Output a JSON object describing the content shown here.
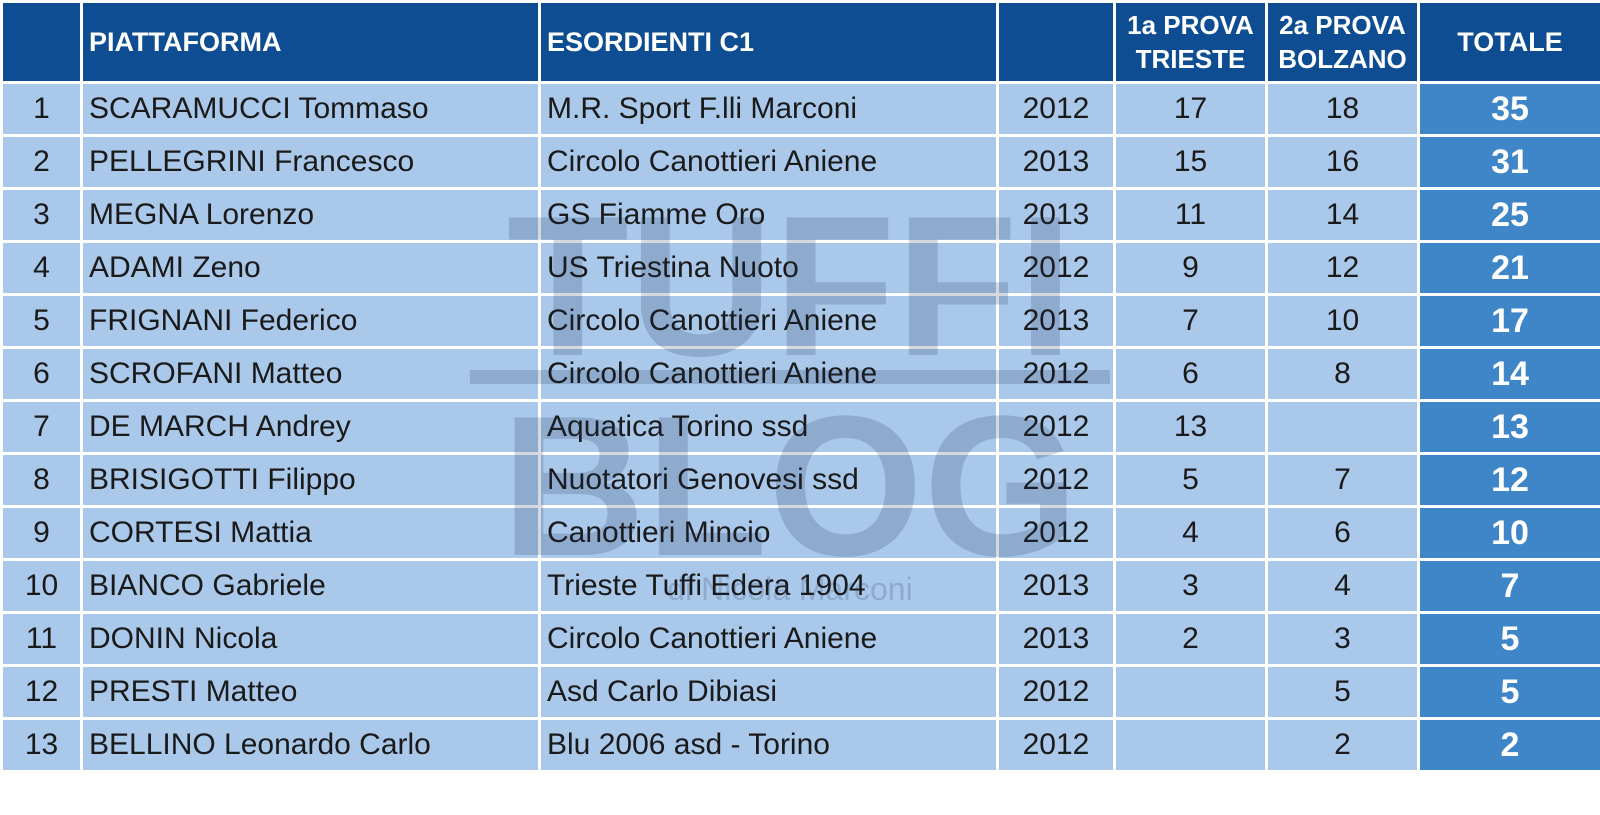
{
  "header": {
    "rank": "",
    "athlete": "PIATTAFORMA",
    "club": "ESORDIENTI C1",
    "year": "",
    "round1_line1": "1a PROVA",
    "round1_line2": "TRIESTE",
    "round2_line1": "2a PROVA",
    "round2_line2": "BOLZANO",
    "total": "TOTALE"
  },
  "rows": [
    {
      "rank": "1",
      "name": "SCARAMUCCI Tommaso",
      "club": "M.R. Sport F.lli Marconi",
      "year": "2012",
      "r1": "17",
      "r2": "18",
      "total": "35"
    },
    {
      "rank": "2",
      "name": "PELLEGRINI Francesco",
      "club": "Circolo Canottieri Aniene",
      "year": "2013",
      "r1": "15",
      "r2": "16",
      "total": "31"
    },
    {
      "rank": "3",
      "name": "MEGNA Lorenzo",
      "club": "GS Fiamme Oro",
      "year": "2013",
      "r1": "11",
      "r2": "14",
      "total": "25"
    },
    {
      "rank": "4",
      "name": "ADAMI Zeno",
      "club": "US Triestina Nuoto",
      "year": "2012",
      "r1": "9",
      "r2": "12",
      "total": "21"
    },
    {
      "rank": "5",
      "name": "FRIGNANI Federico",
      "club": "Circolo Canottieri Aniene",
      "year": "2013",
      "r1": "7",
      "r2": "10",
      "total": "17"
    },
    {
      "rank": "6",
      "name": "SCROFANI Matteo",
      "club": "Circolo Canottieri Aniene",
      "year": "2012",
      "r1": "6",
      "r2": "8",
      "total": "14"
    },
    {
      "rank": "7",
      "name": "DE MARCH Andrey",
      "club": "Aquatica Torino ssd",
      "year": "2012",
      "r1": "13",
      "r2": "",
      "total": "13"
    },
    {
      "rank": "8",
      "name": "BRISIGOTTI Filippo",
      "club": "Nuotatori Genovesi ssd",
      "year": "2012",
      "r1": "5",
      "r2": "7",
      "total": "12"
    },
    {
      "rank": "9",
      "name": "CORTESI Mattia",
      "club": "Canottieri Mincio",
      "year": "2012",
      "r1": "4",
      "r2": "6",
      "total": "10"
    },
    {
      "rank": "10",
      "name": "BIANCO Gabriele",
      "club": "Trieste Tuffi Edera 1904",
      "year": "2013",
      "r1": "3",
      "r2": "4",
      "total": "7"
    },
    {
      "rank": "11",
      "name": "DONIN Nicola",
      "club": "Circolo Canottieri Aniene",
      "year": "2013",
      "r1": "2",
      "r2": "3",
      "total": "5"
    },
    {
      "rank": "12",
      "name": "PRESTI Matteo",
      "club": "Asd Carlo Dibiasi",
      "year": "2012",
      "r1": "",
      "r2": "5",
      "total": "5"
    },
    {
      "rank": "13",
      "name": "BELLINO Leonardo Carlo",
      "club": "Blu 2006 asd - Torino",
      "year": "2012",
      "r1": "",
      "r2": "2",
      "total": "2"
    }
  ],
  "watermark": {
    "line1": "TUFFI",
    "line2": "BLOG",
    "byline": "di Nicola Marconi"
  },
  "colors": {
    "header_bg": "#0e4d92",
    "row_bg": "#a9c8ea",
    "total_bg": "#3f86c9",
    "grid": "#ffffff"
  }
}
